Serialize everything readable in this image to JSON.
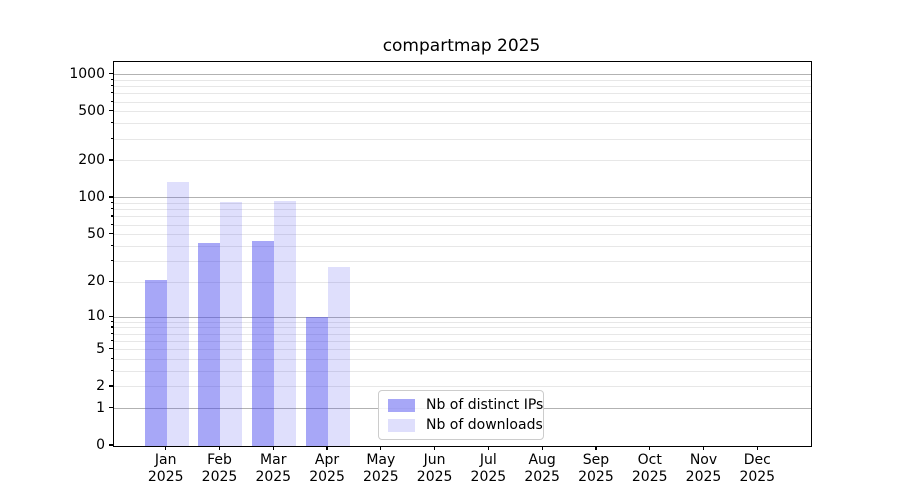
{
  "title": "compartmap 2025",
  "chart_data": {
    "type": "bar",
    "title": "compartmap 2025",
    "categories": [
      {
        "month": "Jan",
        "year": "2025"
      },
      {
        "month": "Feb",
        "year": "2025"
      },
      {
        "month": "Mar",
        "year": "2025"
      },
      {
        "month": "Apr",
        "year": "2025"
      },
      {
        "month": "May",
        "year": "2025"
      },
      {
        "month": "Jun",
        "year": "2025"
      },
      {
        "month": "Jul",
        "year": "2025"
      },
      {
        "month": "Aug",
        "year": "2025"
      },
      {
        "month": "Sep",
        "year": "2025"
      },
      {
        "month": "Oct",
        "year": "2025"
      },
      {
        "month": "Nov",
        "year": "2025"
      },
      {
        "month": "Dec",
        "year": "2025"
      }
    ],
    "series": [
      {
        "name": "Nb of distinct IPs",
        "color": "rgba(68,68,238,0.47)",
        "values": [
          21,
          43,
          44,
          10,
          null,
          null,
          null,
          null,
          null,
          null,
          null,
          null
        ]
      },
      {
        "name": "Nb of downloads",
        "color": "rgba(68,68,238,0.17)",
        "values": [
          135,
          93,
          95,
          27,
          null,
          null,
          null,
          null,
          null,
          null,
          null,
          null
        ]
      }
    ],
    "xlabel": "",
    "ylabel": "",
    "yscale": "log1p",
    "ylim": [
      0,
      1265
    ],
    "yticks": [
      0,
      1,
      2,
      5,
      10,
      20,
      50,
      100,
      200,
      500,
      1000
    ],
    "grid": {
      "major_values": [
        1,
        10,
        100,
        1000
      ],
      "major_color": "#b2b2b2",
      "minor_color": "#e7e7e7"
    },
    "legend_position": "lower center"
  }
}
